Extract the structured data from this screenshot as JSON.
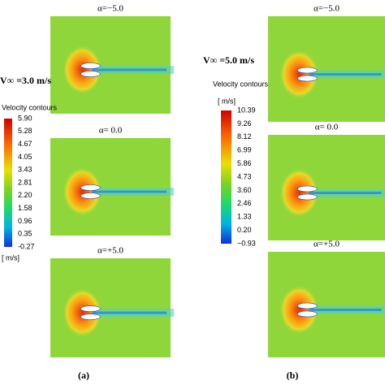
{
  "panels": [
    {
      "label": "(a)",
      "freestream": "V∞ =3.0 m/s",
      "colorbar": {
        "title": "Velocity contours",
        "unit": "[ m/s]",
        "ticks": [
          "5.90",
          "5.28",
          "4.67",
          "4.05",
          "3.43",
          "2.81",
          "2.20",
          "1.58",
          "0.96",
          "0.35",
          "-0.27"
        ]
      },
      "plots": [
        {
          "title": "α=−5.0"
        },
        {
          "title": "α=  0.0"
        },
        {
          "title": "α=+5.0"
        }
      ]
    },
    {
      "label": "(b)",
      "freestream": "V∞ =5.0 m/s",
      "colorbar": {
        "title": "Velocity contours",
        "unit": "[ m/s]",
        "ticks": [
          "10.39",
          "9.26",
          "8.12",
          "6.99",
          "5.86",
          "4.73",
          "3.60",
          "2.46",
          "1.33",
          "0.20",
          "−0.93"
        ]
      },
      "plots": [
        {
          "title": "α=−5.0"
        },
        {
          "title": "α=  0.0"
        },
        {
          "title": "α=+5.0"
        }
      ]
    }
  ]
}
